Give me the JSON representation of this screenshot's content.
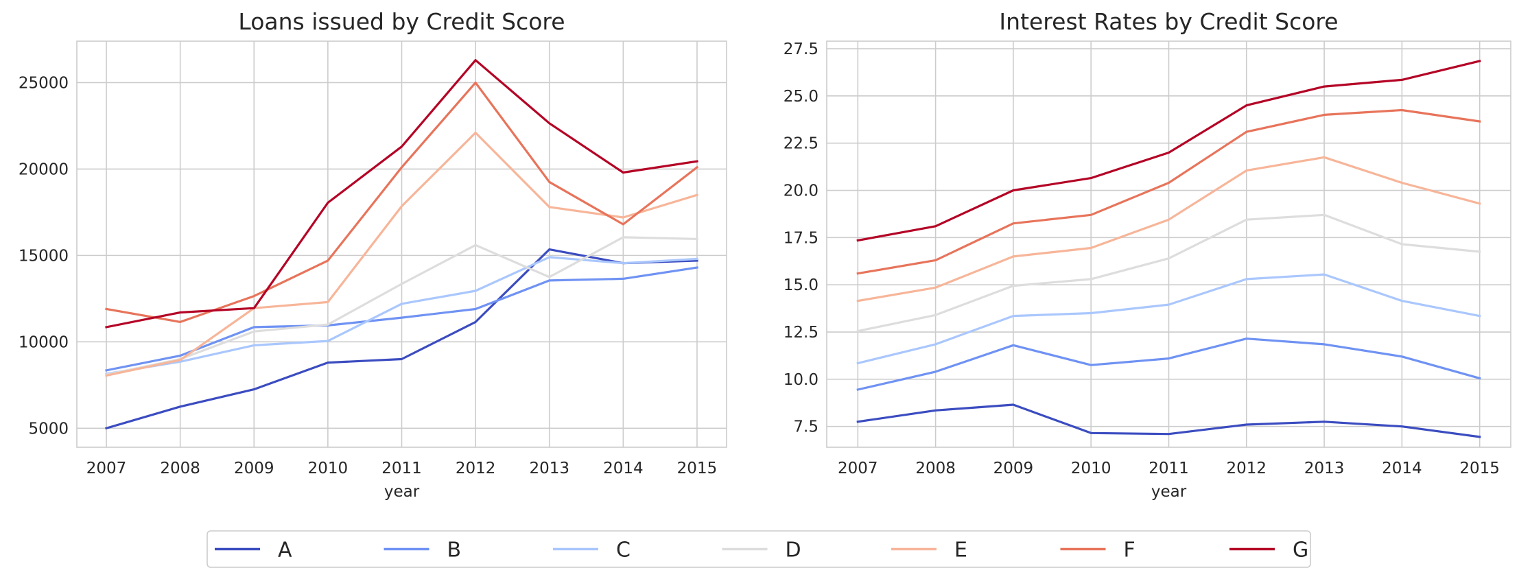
{
  "chart_data": [
    {
      "type": "line",
      "title": "Loans issued by Credit Score",
      "xlabel": "year",
      "ylabel": "",
      "x": [
        2007,
        2008,
        2009,
        2010,
        2011,
        2012,
        2013,
        2014,
        2015
      ],
      "xlim": [
        2006.6,
        2015.4
      ],
      "ylim": [
        3900,
        27400
      ],
      "yticks": [
        5000,
        10000,
        15000,
        20000,
        25000
      ],
      "grid": true,
      "series": [
        {
          "name": "A",
          "color": "#3b4cc0",
          "values": [
            5000,
            6250,
            7250,
            8800,
            9000,
            11150,
            15350,
            14550,
            14700
          ]
        },
        {
          "name": "B",
          "color": "#6f92f3",
          "values": [
            8350,
            9200,
            10850,
            10950,
            11400,
            11900,
            13550,
            13650,
            14300
          ]
        },
        {
          "name": "C",
          "color": "#aac7fd",
          "values": [
            8150,
            8850,
            9800,
            10050,
            12200,
            12950,
            14900,
            14550,
            14800
          ]
        },
        {
          "name": "D",
          "color": "#dddddd",
          "values": [
            8100,
            9000,
            10600,
            11000,
            13350,
            15600,
            13750,
            16050,
            15950
          ]
        },
        {
          "name": "E",
          "color": "#f7b599",
          "values": [
            8050,
            8950,
            11950,
            12300,
            17850,
            22100,
            17800,
            17200,
            18500
          ]
        },
        {
          "name": "F",
          "color": "#e7745b",
          "values": [
            11900,
            11150,
            12650,
            14700,
            20100,
            25000,
            19250,
            16800,
            20100
          ]
        },
        {
          "name": "G",
          "color": "#b40426",
          "values": [
            10850,
            11700,
            11950,
            18050,
            21300,
            26300,
            22650,
            19800,
            20450
          ]
        }
      ]
    },
    {
      "type": "line",
      "title": "Interest Rates by Credit Score",
      "xlabel": "year",
      "ylabel": "",
      "x": [
        2007,
        2008,
        2009,
        2010,
        2011,
        2012,
        2013,
        2014,
        2015
      ],
      "xlim": [
        2006.6,
        2015.4
      ],
      "ylim": [
        6.4,
        27.9
      ],
      "yticks": [
        7.5,
        10.0,
        12.5,
        15.0,
        17.5,
        20.0,
        22.5,
        25.0,
        27.5
      ],
      "grid": true,
      "series": [
        {
          "name": "A",
          "color": "#3b4cc0",
          "values": [
            7.75,
            8.35,
            8.65,
            7.15,
            7.1,
            7.6,
            7.75,
            7.5,
            6.95
          ]
        },
        {
          "name": "B",
          "color": "#6f92f3",
          "values": [
            9.45,
            10.4,
            11.8,
            10.75,
            11.1,
            12.15,
            11.85,
            11.2,
            10.05
          ]
        },
        {
          "name": "C",
          "color": "#aac7fd",
          "values": [
            10.85,
            11.85,
            13.35,
            13.5,
            13.95,
            15.3,
            15.55,
            14.15,
            13.35
          ]
        },
        {
          "name": "D",
          "color": "#dddddd",
          "values": [
            12.55,
            13.4,
            14.95,
            15.3,
            16.4,
            18.45,
            18.7,
            17.15,
            16.75
          ]
        },
        {
          "name": "E",
          "color": "#f7b599",
          "values": [
            14.15,
            14.85,
            16.5,
            16.95,
            18.45,
            21.05,
            21.75,
            20.4,
            19.3
          ]
        },
        {
          "name": "F",
          "color": "#e7745b",
          "values": [
            15.6,
            16.3,
            18.25,
            18.7,
            20.4,
            23.1,
            24.0,
            24.25,
            23.65
          ]
        },
        {
          "name": "G",
          "color": "#b40426",
          "values": [
            17.35,
            18.1,
            20.0,
            20.65,
            22.0,
            24.5,
            25.5,
            25.85,
            26.85
          ]
        }
      ]
    }
  ],
  "legend": {
    "placement": "bottom-center",
    "entries": [
      {
        "label": "A",
        "color": "#3b4cc0"
      },
      {
        "label": "B",
        "color": "#6f92f3"
      },
      {
        "label": "C",
        "color": "#aac7fd"
      },
      {
        "label": "D",
        "color": "#dddddd"
      },
      {
        "label": "E",
        "color": "#f7b599"
      },
      {
        "label": "F",
        "color": "#e7745b"
      },
      {
        "label": "G",
        "color": "#b40426"
      }
    ]
  }
}
